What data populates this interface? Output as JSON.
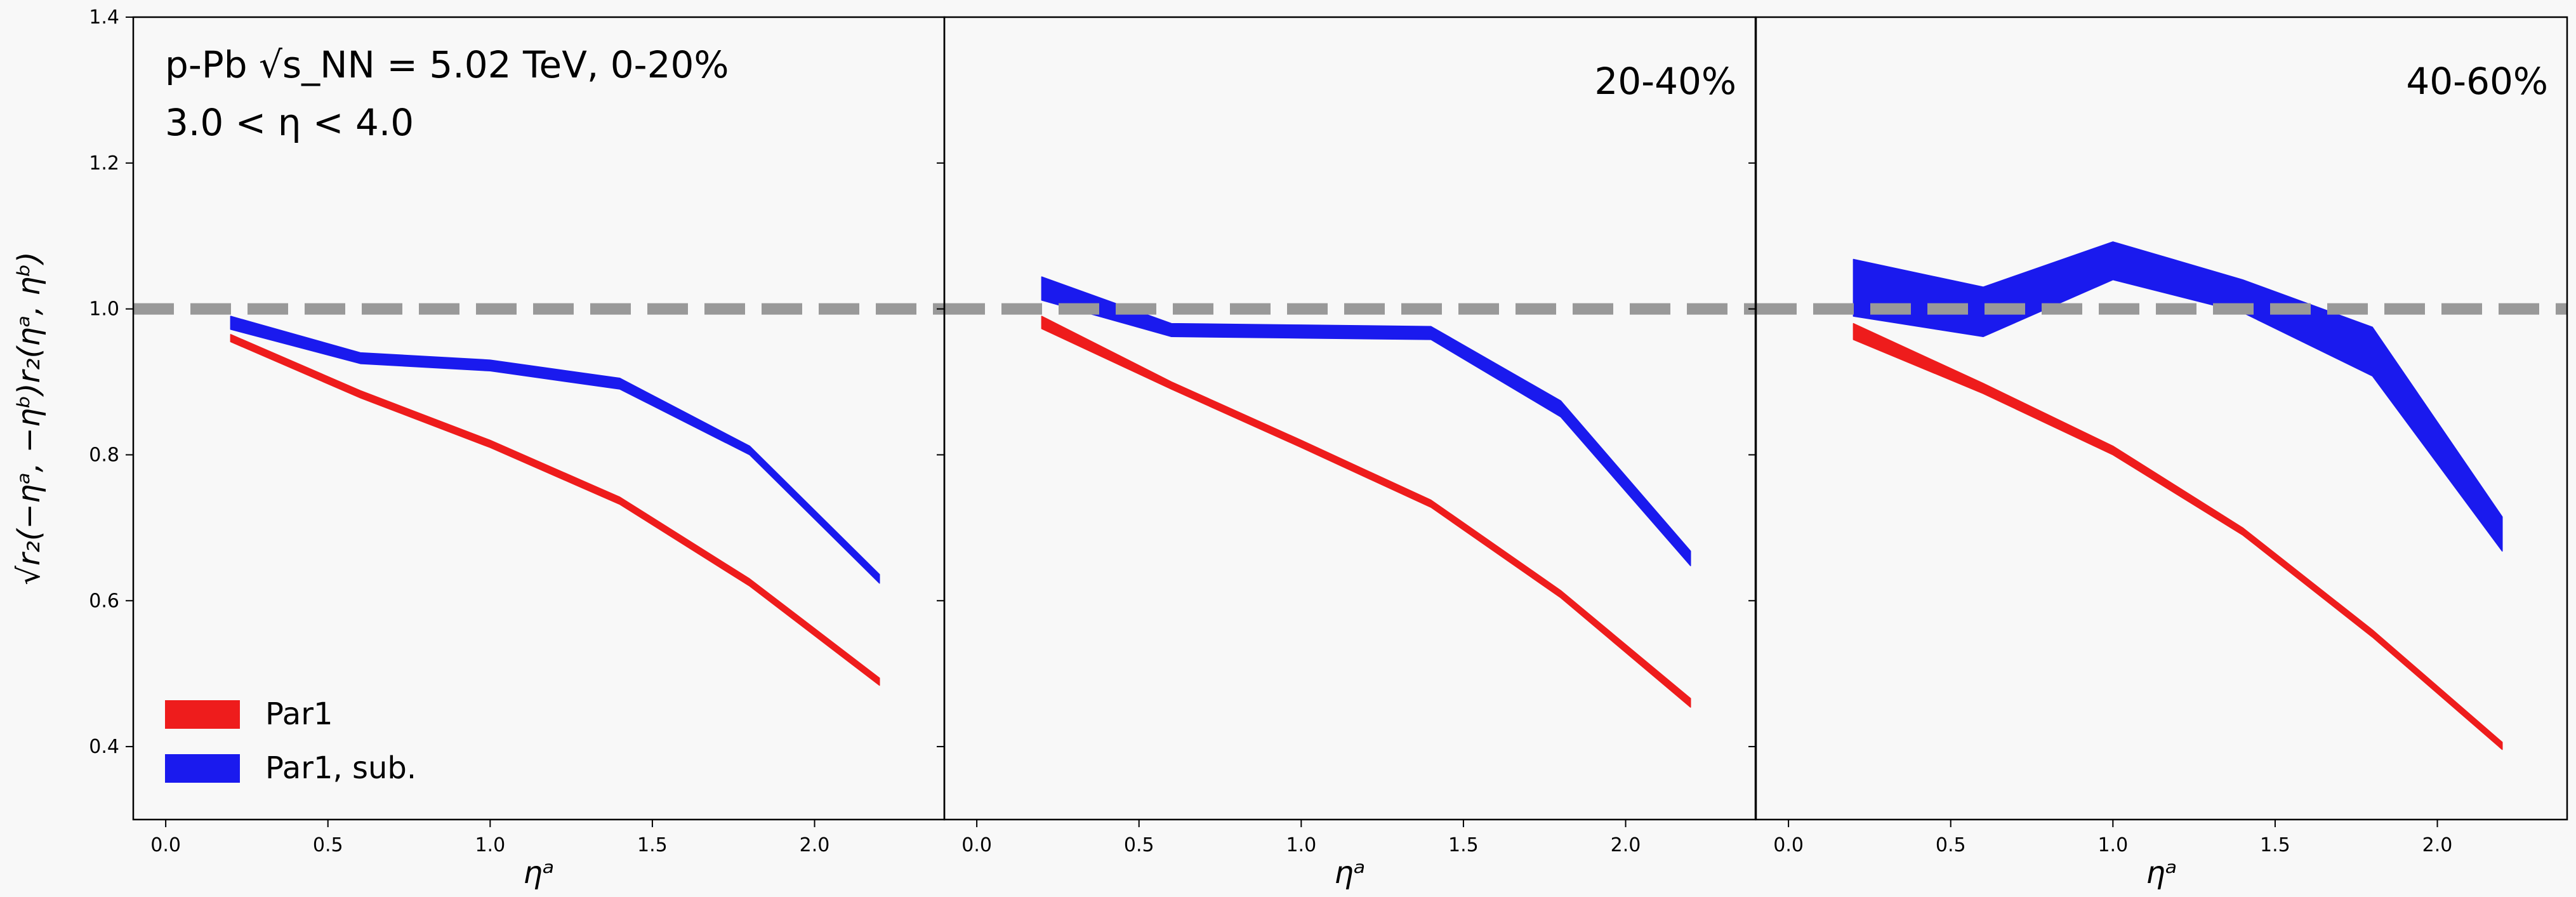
{
  "chart_data": {
    "type": "area",
    "ylabel": "√r₂(−ηᵃ, −ηᵇ)r₂(ηᵃ, ηᵇ)",
    "ylim": [
      0.3,
      1.4
    ],
    "y_ticks": [
      "0.4",
      "0.6",
      "0.8",
      "1.0",
      "1.2",
      "1.4"
    ],
    "xlim": [
      -0.1,
      2.4
    ],
    "x_ticks": [
      "0.0",
      "0.5",
      "1.0",
      "1.5",
      "2.0"
    ],
    "reference_line": {
      "y": 1.0,
      "style": "dashed",
      "color": "#999999"
    },
    "legend": {
      "placement": "lower-left",
      "entries": [
        {
          "label": "Par1",
          "color": "#ee1c1c"
        },
        {
          "label": "Par1, sub.",
          "color": "#1a1aee"
        }
      ]
    },
    "panels": [
      {
        "xlabel": "ηᵃ",
        "annotation_lines": [
          "p-Pb √s_NN = 5.02 TeV, 0-20%",
          "3.0  < η <  4.0"
        ],
        "series": [
          {
            "name": "Par1",
            "color": "#ee1c1c",
            "x": [
              0.2,
              0.6,
              1.0,
              1.4,
              1.8,
              2.2
            ],
            "lower": [
              0.955,
              0.878,
              0.81,
              0.732,
              0.62,
              0.484
            ],
            "upper": [
              0.965,
              0.888,
              0.82,
              0.742,
              0.63,
              0.494
            ]
          },
          {
            "name": "Par1, sub.",
            "color": "#1a1aee",
            "x": [
              0.2,
              0.6,
              1.0,
              1.4,
              1.8,
              2.2
            ],
            "lower": [
              0.972,
              0.925,
              0.915,
              0.89,
              0.8,
              0.624
            ],
            "upper": [
              0.99,
              0.94,
              0.93,
              0.905,
              0.812,
              0.636
            ]
          }
        ]
      },
      {
        "xlabel": "ηᵃ",
        "annotation_lines": [
          "20-40%"
        ],
        "series": [
          {
            "name": "Par1",
            "color": "#ee1c1c",
            "x": [
              0.2,
              0.6,
              1.0,
              1.4,
              1.8,
              2.2
            ],
            "lower": [
              0.973,
              0.89,
              0.81,
              0.728,
              0.604,
              0.454
            ],
            "upper": [
              0.99,
              0.9,
              0.82,
              0.738,
              0.614,
              0.466
            ]
          },
          {
            "name": "Par1, sub.",
            "color": "#1a1aee",
            "x": [
              0.2,
              0.6,
              1.0,
              1.4,
              1.8,
              2.2
            ],
            "lower": [
              1.012,
              0.962,
              0.96,
              0.958,
              0.852,
              0.648
            ],
            "upper": [
              1.044,
              0.98,
              0.978,
              0.976,
              0.874,
              0.668
            ]
          }
        ]
      },
      {
        "xlabel": "ηᵃ",
        "annotation_lines": [
          "40-60%"
        ],
        "series": [
          {
            "name": "Par1",
            "color": "#ee1c1c",
            "x": [
              0.2,
              0.6,
              1.0,
              1.4,
              1.8,
              2.2
            ],
            "lower": [
              0.958,
              0.884,
              0.8,
              0.69,
              0.55,
              0.396
            ],
            "upper": [
              0.98,
              0.898,
              0.812,
              0.7,
              0.56,
              0.406
            ]
          },
          {
            "name": "Par1, sub.",
            "color": "#1a1aee",
            "x": [
              0.2,
              0.6,
              1.0,
              1.4,
              1.8,
              2.2
            ],
            "lower": [
              0.99,
              0.962,
              1.04,
              0.995,
              0.908,
              0.668
            ],
            "upper": [
              1.068,
              1.03,
              1.092,
              1.04,
              0.975,
              0.715
            ]
          }
        ]
      }
    ]
  }
}
